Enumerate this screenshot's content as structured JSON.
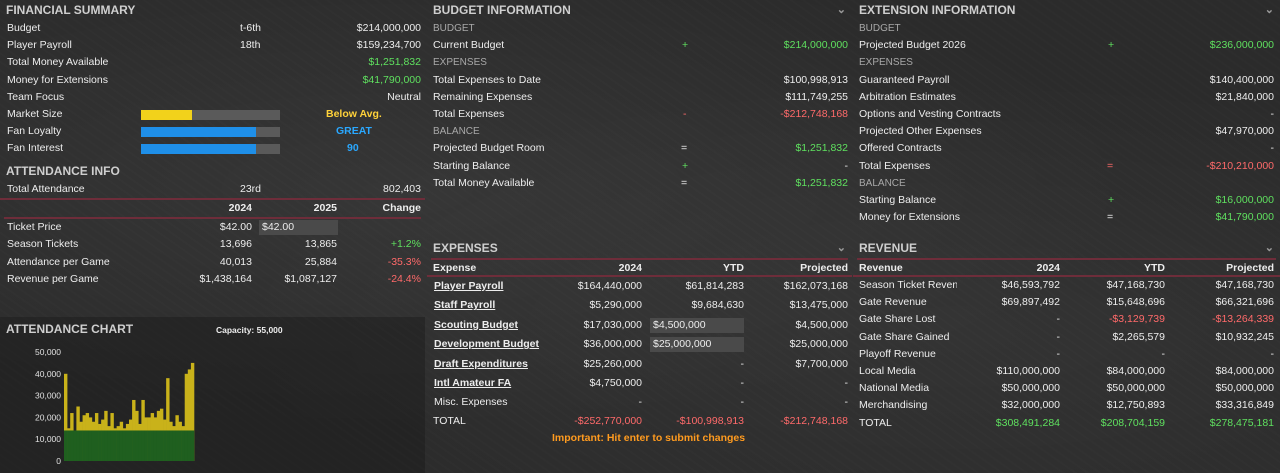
{
  "financial_summary": {
    "title": "FINANCIAL SUMMARY",
    "rows": [
      {
        "label": "Budget",
        "rank": "t-6th",
        "value": "$214,000,000"
      },
      {
        "label": "Player Payroll",
        "rank": "18th",
        "value": "$159,234,700"
      },
      {
        "label": "Total Money Available",
        "value": "$1,251,832"
      },
      {
        "label": "Money for Extensions",
        "value": "$41,790,000"
      },
      {
        "label": "Team Focus",
        "value": "Neutral"
      }
    ],
    "meters": [
      {
        "label": "Market Size",
        "level": 0.37,
        "color": "#f2d21b",
        "text": "Below Avg.",
        "text_color": "#ffd23a"
      },
      {
        "label": "Fan Loyalty",
        "level": 0.83,
        "color": "#1f8fe8",
        "text": "GREAT",
        "text_color": "#2aa8ff"
      },
      {
        "label": "Fan Interest",
        "level": 0.83,
        "color": "#1f8fe8",
        "text": "90",
        "text_color": "#2aa8ff"
      }
    ]
  },
  "attendance_info": {
    "title": "ATTENDANCE INFO",
    "total_label": "Total Attendance",
    "total_rank": "23rd",
    "total_value": "802,403",
    "cols": [
      "2024",
      "2025",
      "Change"
    ],
    "rows": [
      {
        "label": "Ticket Price",
        "y2024": "$42.00",
        "y2025": "$42.00",
        "change": ""
      },
      {
        "label": "Season Tickets",
        "y2024": "13,696",
        "y2025": "13,865",
        "change": "+1.2%"
      },
      {
        "label": "Attendance per Game",
        "y2024": "40,013",
        "y2025": "25,884",
        "change": "-35.3%"
      },
      {
        "label": "Revenue per Game",
        "y2024": "$1,438,164",
        "y2025": "$1,087,127",
        "change": "-24.4%"
      }
    ]
  },
  "attendance_chart": {
    "title": "ATTENDANCE CHART",
    "capacity": "Capacity: 55,000"
  },
  "chart_data": {
    "type": "bar",
    "title": "ATTENDANCE CHART",
    "yticks": [
      "50,000",
      "40,000",
      "30,000",
      "20,000",
      "10,000",
      "0"
    ],
    "ylim": [
      0,
      50000
    ],
    "series": [
      {
        "values": [
          40000,
          15000,
          22000,
          14000,
          25000,
          18000,
          21000,
          22000,
          20000,
          18000,
          22000,
          17000,
          19000,
          23000,
          16000,
          22000,
          15000,
          16000,
          18000,
          15000,
          17000,
          19000,
          28000,
          23000,
          17000,
          28000,
          20000,
          20000,
          22000,
          20000,
          23000,
          24000,
          19000,
          38000,
          18000,
          16000,
          21000,
          18000,
          16000,
          40000,
          42000,
          45000
        ]
      },
      {
        "values": [
          14000,
          14000,
          14000,
          14000,
          14000,
          14000,
          14000,
          14000,
          14000,
          14000,
          14000,
          14000,
          14000,
          14000,
          14000,
          14000,
          14000,
          14000,
          14000,
          14000,
          14000,
          14000,
          14000,
          14000,
          14000,
          14000,
          14000,
          14000,
          14000,
          14000,
          14000,
          14000,
          14000,
          14000,
          14000,
          14000,
          14000,
          14000,
          14000,
          14000,
          14000,
          14000
        ]
      }
    ],
    "colors": {
      "attendance": "#c9b21a",
      "season": "#1f5f1f"
    }
  },
  "budget_info": {
    "title": "BUDGET INFORMATION",
    "s_budget": "BUDGET",
    "current_budget": {
      "label": "Current Budget",
      "op": "+",
      "value": "$214,000,000"
    },
    "s_expenses": "EXPENSES",
    "exp_rows": [
      {
        "label": "Total Expenses to Date",
        "op": "",
        "value": "$100,998,913"
      },
      {
        "label": "Remaining Expenses",
        "op": "",
        "value": "$111,749,255"
      },
      {
        "label": "Total Expenses",
        "op": "-",
        "value": "-$212,748,168"
      }
    ],
    "s_balance": "BALANCE",
    "bal_rows": [
      {
        "label": "Projected Budget Room",
        "op": "=",
        "value": "$1,251,832"
      },
      {
        "label": "Starting Balance",
        "op": "+",
        "value": "-"
      },
      {
        "label": "Total Money Available",
        "op": "=",
        "value": "$1,251,832"
      }
    ]
  },
  "extension_info": {
    "title": "EXTENSION INFORMATION",
    "s_budget": "BUDGET",
    "projected": {
      "label": "Projected Budget 2026",
      "op": "+",
      "value": "$236,000,000"
    },
    "s_expenses": "EXPENSES",
    "exp_rows": [
      {
        "label": "Guaranteed Payroll",
        "op": "",
        "value": "$140,400,000"
      },
      {
        "label": "Arbitration Estimates",
        "op": "",
        "value": "$21,840,000"
      },
      {
        "label": "Options and Vesting Contracts",
        "op": "",
        "value": "-"
      },
      {
        "label": "Projected Other Expenses",
        "op": "",
        "value": "$47,970,000"
      },
      {
        "label": "Offered Contracts",
        "op": "",
        "value": "-"
      },
      {
        "label": "Total Expenses",
        "op": "=",
        "value": "-$210,210,000"
      }
    ],
    "s_balance": "BALANCE",
    "bal_rows": [
      {
        "label": "Starting Balance",
        "op": "+",
        "value": "$16,000,000"
      },
      {
        "label": "Money for Extensions",
        "op": "=",
        "value": "$41,790,000"
      }
    ]
  },
  "expenses": {
    "title": "EXPENSES",
    "cols": [
      "Expense",
      "2024",
      "YTD",
      "Projected"
    ],
    "rows": [
      {
        "label": "Player Payroll",
        "link": true,
        "y2024": "$164,440,000",
        "ytd": "$61,814,283",
        "proj": "$162,073,168"
      },
      {
        "label": "Staff Payroll",
        "link": true,
        "y2024": "$5,290,000",
        "ytd": "$9,684,630",
        "proj": "$13,475,000"
      },
      {
        "label": "Scouting Budget",
        "link": true,
        "y2024": "$17,030,000",
        "ytd": "$4,500,000",
        "ytd_input": true,
        "proj": "$4,500,000"
      },
      {
        "label": "Development Budget",
        "link": true,
        "y2024": "$36,000,000",
        "ytd": "$25,000,000",
        "ytd_input": true,
        "proj": "$25,000,000"
      },
      {
        "label": "Draft Expenditures",
        "link": true,
        "y2024": "$25,260,000",
        "ytd": "-",
        "proj": "$7,700,000"
      },
      {
        "label": "Intl Amateur FA",
        "link": true,
        "y2024": "$4,750,000",
        "ytd": "-",
        "proj": "-"
      },
      {
        "label": "Misc. Expenses",
        "link": false,
        "y2024": "-",
        "ytd": "-",
        "proj": "-"
      }
    ],
    "total": {
      "label": "TOTAL",
      "y2024": "-$252,770,000",
      "ytd": "-$100,998,913",
      "proj": "-$212,748,168"
    },
    "note": "Important: Hit enter to submit changes"
  },
  "revenue": {
    "title": "REVENUE",
    "cols": [
      "Revenue",
      "2024",
      "YTD",
      "Projected"
    ],
    "rows": [
      {
        "label": "Season Ticket Reven",
        "y2024": "$46,593,792",
        "ytd": "$47,168,730",
        "proj": "$47,168,730",
        "neg": false
      },
      {
        "label": "Gate Revenue",
        "y2024": "$69,897,492",
        "ytd": "$15,648,696",
        "proj": "$66,321,696",
        "neg": false
      },
      {
        "label": "Gate Share Lost",
        "y2024": "-",
        "ytd": "-$3,129,739",
        "proj": "-$13,264,339",
        "neg": true
      },
      {
        "label": "Gate Share Gained",
        "y2024": "-",
        "ytd": "$2,265,579",
        "proj": "$10,932,245",
        "neg": false
      },
      {
        "label": "Playoff Revenue",
        "y2024": "-",
        "ytd": "-",
        "proj": "-",
        "neg": false
      },
      {
        "label": "Local Media",
        "y2024": "$110,000,000",
        "ytd": "$84,000,000",
        "proj": "$84,000,000",
        "neg": false
      },
      {
        "label": "National Media",
        "y2024": "$50,000,000",
        "ytd": "$50,000,000",
        "proj": "$50,000,000",
        "neg": false
      },
      {
        "label": "Merchandising",
        "y2024": "$32,000,000",
        "ytd": "$12,750,893",
        "proj": "$33,316,849",
        "neg": false
      }
    ],
    "total": {
      "label": "TOTAL",
      "y2024": "$308,491,284",
      "ytd": "$208,704,159",
      "proj": "$278,475,181"
    }
  },
  "icons": {
    "chevron": "chevron-down-icon"
  }
}
